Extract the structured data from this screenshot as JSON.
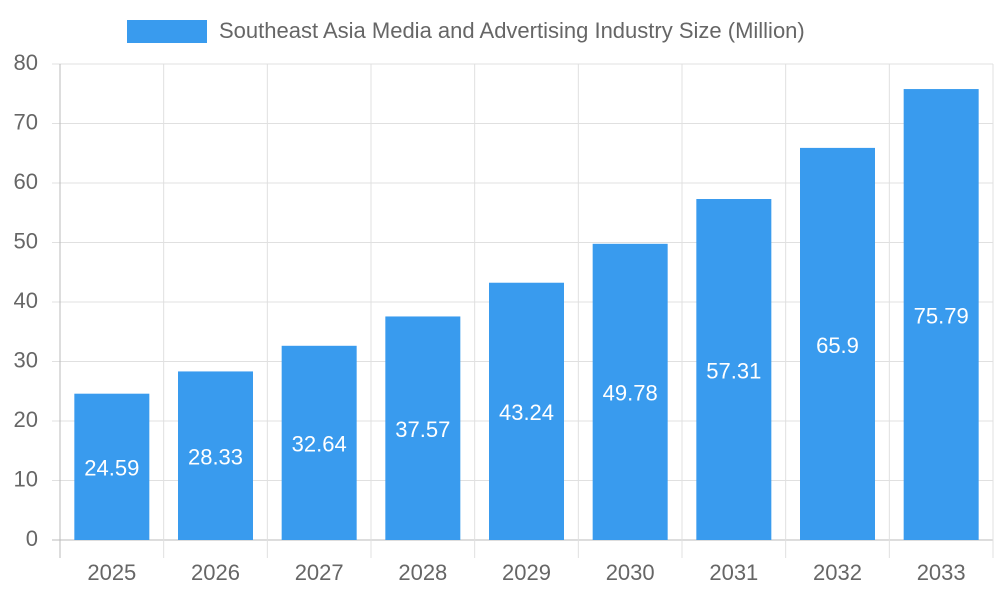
{
  "chart_data": {
    "type": "bar",
    "categories": [
      "2025",
      "2026",
      "2027",
      "2028",
      "2029",
      "2030",
      "2031",
      "2032",
      "2033"
    ],
    "series": [
      {
        "name": "Southeast Asia Media and Advertising Industry Size (Million)",
        "color": "#399bee",
        "values": [
          24.59,
          28.33,
          32.64,
          37.57,
          43.24,
          49.78,
          57.31,
          65.9,
          75.79
        ]
      }
    ],
    "ylim": [
      0,
      80
    ],
    "yticks": [
      0,
      10,
      20,
      30,
      40,
      50,
      60,
      70,
      80
    ],
    "grid": true,
    "legend": "top"
  }
}
